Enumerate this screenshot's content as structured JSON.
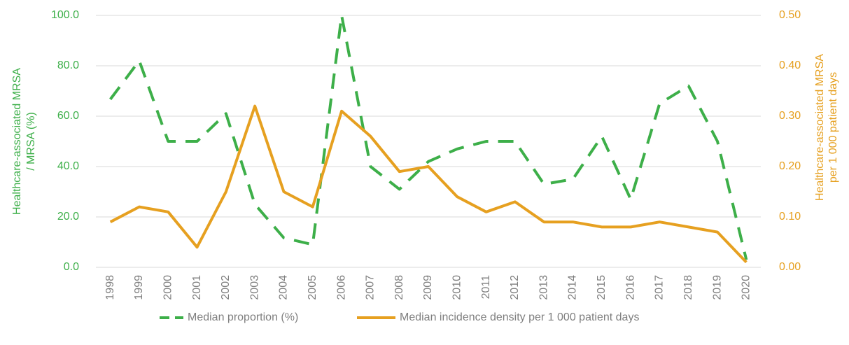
{
  "chart_data": {
    "type": "line",
    "categories": [
      "1998",
      "1999",
      "2000",
      "2001",
      "2002",
      "2003",
      "2004",
      "2005",
      "2006",
      "2007",
      "2008",
      "2009",
      "2010",
      "2011",
      "2012",
      "2013",
      "2014",
      "2015",
      "2016",
      "2017",
      "2018",
      "2019",
      "2020"
    ],
    "y_label": [
      "Healthcare-associated MRSA",
      "/ MRSA (%)"
    ],
    "y2_label": [
      "Healthcare-associated MRSA",
      "per 1 000 patient days"
    ],
    "ylim": [
      0,
      100
    ],
    "yticks": [
      {
        "value": 0,
        "label": "0.0"
      },
      {
        "value": 20,
        "label": "20.0"
      },
      {
        "value": 40,
        "label": "40.0"
      },
      {
        "value": 60,
        "label": "60.0"
      },
      {
        "value": 80,
        "label": "80.0"
      },
      {
        "value": 100,
        "label": "100.0"
      }
    ],
    "y2lim": [
      0,
      0.5
    ],
    "y2ticks": [
      {
        "value": 0,
        "label": "0.00"
      },
      {
        "value": 0.1,
        "label": "0.10"
      },
      {
        "value": 0.2,
        "label": "0.20"
      },
      {
        "value": 0.3,
        "label": "0.30"
      },
      {
        "value": 0.4,
        "label": "0.40"
      },
      {
        "value": 0.5,
        "label": "0.50"
      }
    ],
    "grid": true,
    "legend": "bottom",
    "series": [
      {
        "name": "Median proportion (%)",
        "color": "#3daf49",
        "dashed": true,
        "values": [
          66.7,
          82,
          50,
          50,
          61,
          25,
          11.7,
          9,
          100,
          40,
          31,
          42,
          47,
          50,
          50,
          33,
          35,
          52,
          27,
          65,
          72,
          50,
          3
        ]
      },
      {
        "name": "Median incidence density per 1 000 patient days",
        "color": "#e6a020",
        "axis": "y2",
        "dashed": false,
        "values": [
          0.09,
          0.12,
          0.11,
          0.04,
          0.15,
          0.32,
          0.15,
          0.12,
          0.31,
          0.26,
          0.19,
          0.2,
          0.14,
          0.11,
          0.13,
          0.09,
          0.09,
          0.08,
          0.08,
          0.09,
          0.08,
          0.07,
          0.01
        ]
      }
    ]
  }
}
